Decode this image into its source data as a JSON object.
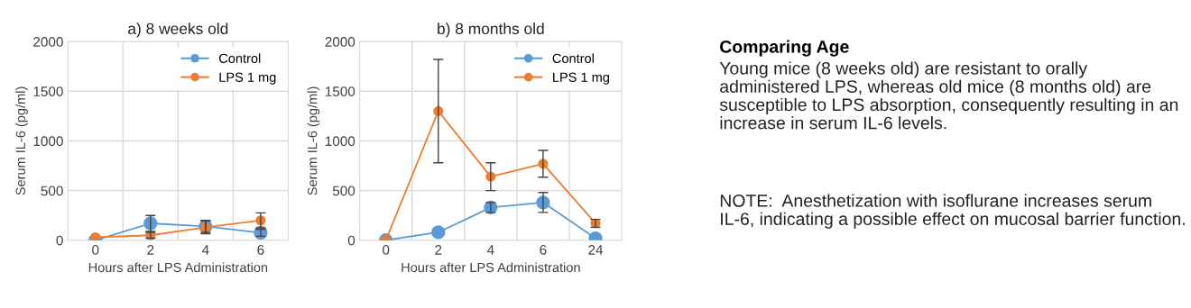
{
  "chart_data": [
    {
      "type": "line",
      "title": "a) 8 weeks old",
      "xlabel": "Hours after LPS Administration",
      "ylabel": "Serum IL-6 (pg/ml)",
      "categories": [
        "0",
        "2",
        "4",
        "6"
      ],
      "ylim": [
        0,
        2000
      ],
      "yticks": [
        0,
        500,
        1000,
        1500,
        2000
      ],
      "grid": true,
      "legend": "top right",
      "marker": "circle",
      "line_style": "solid",
      "series": [
        {
          "name": "Control",
          "color": "#5b9bd5",
          "values": [
            0,
            170,
            140,
            75
          ],
          "errors": [
            null,
            80,
            60,
            35
          ]
        },
        {
          "name": "LPS 1 mg",
          "color": "#ed7d31",
          "values": [
            30,
            50,
            130,
            200
          ],
          "errors": [
            null,
            30,
            65,
            75
          ]
        }
      ]
    },
    {
      "type": "line",
      "title": "b) 8 months old",
      "xlabel": "Hours after LPS Administration",
      "ylabel": "Serum IL-6 (pg/ml)",
      "categories": [
        "0",
        "2",
        "4",
        "6",
        "24"
      ],
      "ylim": [
        0,
        2000
      ],
      "yticks": [
        0,
        500,
        1000,
        1500,
        2000
      ],
      "grid": true,
      "legend": "top right",
      "marker": "circle",
      "line_style": "solid",
      "series": [
        {
          "name": "Control",
          "color": "#5b9bd5",
          "values": [
            0,
            80,
            330,
            380,
            20
          ],
          "errors": [
            null,
            null,
            50,
            100,
            null
          ]
        },
        {
          "name": "LPS 1 mg",
          "color": "#ed7d31",
          "values": [
            0,
            1300,
            640,
            770,
            170
          ],
          "errors": [
            null,
            520,
            140,
            135,
            40
          ]
        }
      ]
    },
    {
      "type": "other",
      "title": "Comparing Age",
      "annotations": [
        "Young mice (8 weeks old) are resistant to orally administered LPS, whereas old mice (8 months old) are susceptible to LPS absorption, consequently resulting in an increase in serum IL-6 levels.",
        "NOTE:  Anesthetization with isoflurane increases serum IL-6, indicating a possible effect on mucosal barrier function."
      ]
    }
  ]
}
